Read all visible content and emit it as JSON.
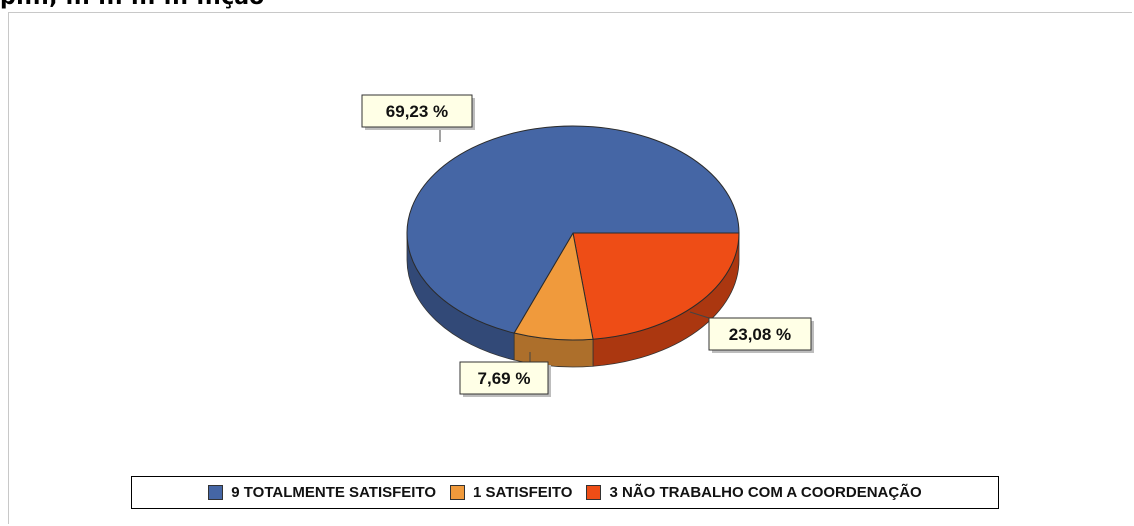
{
  "page": {
    "header_text": "p...., ... ... ... ... ...ção"
  },
  "chart_data": {
    "type": "pie",
    "three_d": true,
    "title": "",
    "series": [
      {
        "name": "TOTALMENTE SATISFEITO",
        "value": 9,
        "percent_label": "69,23 %",
        "color": "#4566A5"
      },
      {
        "name": "SATISFEITO",
        "value": 1,
        "percent_label": "7,69 %",
        "color": "#F09A3C"
      },
      {
        "name": "NÃO TRABALHO COM A COORDENAÇÃO",
        "value": 3,
        "percent_label": "23,08 %",
        "color": "#EE4D16"
      }
    ],
    "legend": {
      "position": "bottom",
      "items": [
        "9 TOTALMENTE SATISFEITO",
        "1 SATISFEITO",
        "3 NÃO TRABALHO COM A COORDENAÇÃO"
      ]
    }
  }
}
